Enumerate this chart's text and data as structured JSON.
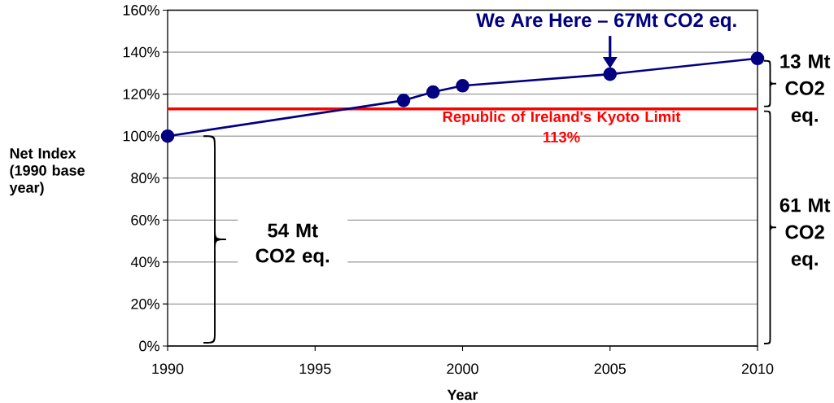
{
  "chart_data": {
    "type": "line",
    "xlabel": "Year",
    "ylabel": "Net Index (1990 base year)",
    "x": [
      1990,
      1998,
      1999,
      2000,
      2005,
      2010
    ],
    "values": [
      100,
      117,
      121,
      124,
      129.5,
      137
    ],
    "color": "#000080",
    "xlim": [
      1990,
      2010
    ],
    "ylim": [
      0,
      160
    ],
    "xticks": [
      1990,
      1995,
      2000,
      2005,
      2010
    ],
    "yticks": [
      {
        "value": 0,
        "label": "0%"
      },
      {
        "value": 20,
        "label": "20%"
      },
      {
        "value": 40,
        "label": "40%"
      },
      {
        "value": 60,
        "label": "60%"
      },
      {
        "value": 80,
        "label": "80%"
      },
      {
        "value": 100,
        "label": "100%"
      },
      {
        "value": 120,
        "label": "120%"
      },
      {
        "value": 140,
        "label": "140%"
      },
      {
        "value": 160,
        "label": "160%"
      }
    ],
    "grid": "y",
    "marker": "circle",
    "line_style": "solid",
    "ref_lines": [
      {
        "axis": "y",
        "value": 113,
        "label": "Republic of Ireland's Kyoto Limit 113%",
        "color": "#ff0000"
      }
    ],
    "annotations": [
      {
        "text": "We Are Here – 67Mt CO2 eq.",
        "x": 2005,
        "y": 129.5
      },
      "54 Mt CO2 eq.",
      "13 Mt CO2 eq.",
      "61 Mt CO2 eq."
    ]
  }
}
